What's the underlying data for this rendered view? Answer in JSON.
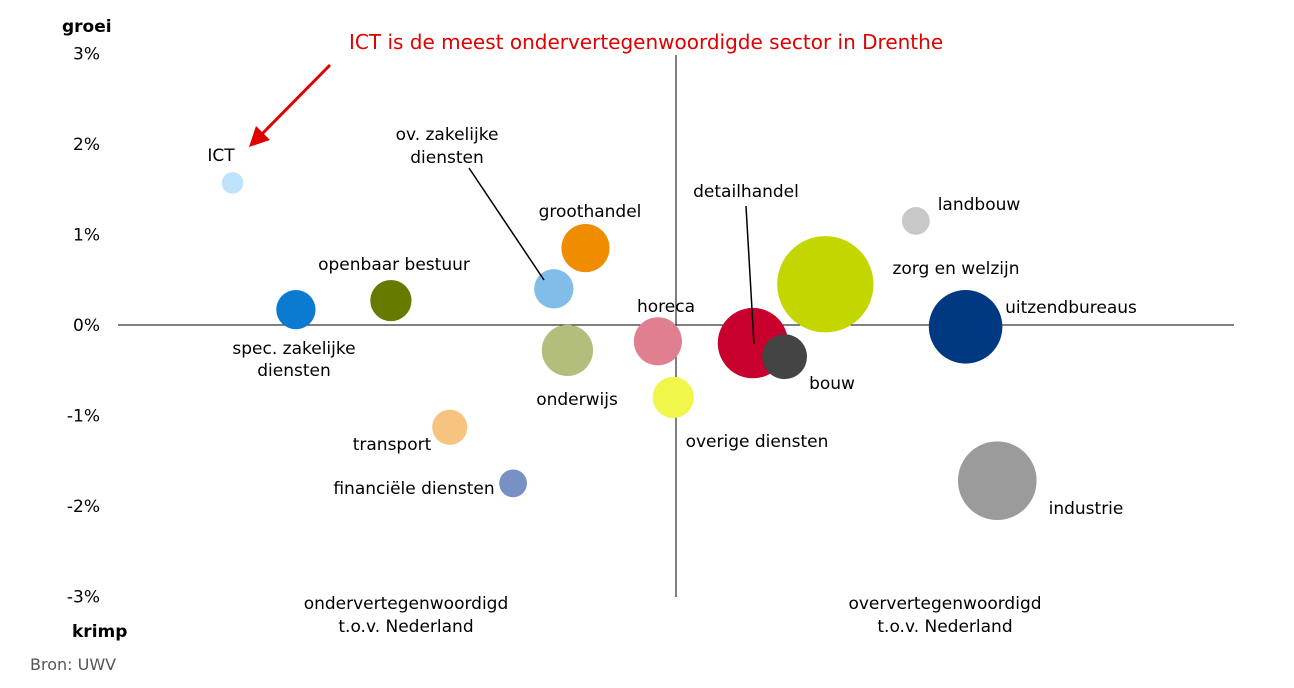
{
  "chart_data": {
    "type": "scatter",
    "subtype": "bubble",
    "title": "",
    "annotation": {
      "text": "ICT is de meest ondervertegenwoordigde sector in Drenthe",
      "color": "#e00000",
      "points_to": "ICT"
    },
    "y_axis": {
      "top_label": "groei",
      "bottom_label": "krimp",
      "ticks": [
        "3%",
        "2%",
        "1%",
        "0%",
        "-1%",
        "-2%",
        "-3%"
      ],
      "ylim": [
        -3,
        3
      ]
    },
    "x_axis": {
      "left_label": [
        "ondervertegenwoordigd",
        "t.o.v. Nederland"
      ],
      "right_label": [
        "oververtegenwoordigd",
        "t.o.v. Nederland"
      ]
    },
    "grid": false,
    "points": [
      {
        "label": "ICT",
        "x": -4.9,
        "y": 1.57,
        "size": 0.15,
        "color": "#bfe3fb"
      },
      {
        "label": "spec. zakelijke diensten",
        "label_lines": [
          "spec. zakelijke",
          "diensten"
        ],
        "x": -4.2,
        "y": 0.17,
        "size": 0.5,
        "color": "#0a7bd0"
      },
      {
        "label": "openbaar bestuur",
        "x": -3.15,
        "y": 0.27,
        "size": 0.55,
        "color": "#667a00"
      },
      {
        "label": "ov. zakelijke diensten",
        "label_lines": [
          "ov. zakelijke",
          "diensten"
        ],
        "x": -1.35,
        "y": 0.4,
        "size": 0.5,
        "color": "#82bce8"
      },
      {
        "label": "groothandel",
        "x": -1.0,
        "y": 0.85,
        "size": 0.75,
        "color": "#f08c00"
      },
      {
        "label": "onderwijs",
        "x": -1.2,
        "y": -0.28,
        "size": 0.85,
        "color": "#b3bd7c"
      },
      {
        "label": "transport",
        "x": -2.5,
        "y": -1.13,
        "size": 0.4,
        "color": "#f7c480"
      },
      {
        "label": "financiële diensten",
        "x": -1.8,
        "y": -1.75,
        "size": 0.25,
        "color": "#7891c4"
      },
      {
        "label": "horeca",
        "x": -0.2,
        "y": -0.18,
        "size": 0.75,
        "color": "#df7f8f"
      },
      {
        "label": "overige diensten",
        "x": -0.03,
        "y": -0.8,
        "size": 0.55,
        "color": "#f1f64b"
      },
      {
        "label": "detailhandel",
        "x": 0.85,
        "y": -0.2,
        "size": 1.6,
        "color": "#c8002e"
      },
      {
        "label": "bouw",
        "x": 1.2,
        "y": -0.35,
        "size": 0.65,
        "color": "#444444"
      },
      {
        "label": "zorg en welzijn",
        "x": 1.65,
        "y": 0.45,
        "size": 3.0,
        "color": "#c4d600"
      },
      {
        "label": "landbouw",
        "x": 2.65,
        "y": 1.15,
        "size": 0.25,
        "color": "#c8c8c8"
      },
      {
        "label": "uitzendbureaus",
        "x": 3.2,
        "y": -0.02,
        "size": 1.75,
        "color": "#003882"
      },
      {
        "label": "industrie",
        "x": 3.55,
        "y": -1.72,
        "size": 2.0,
        "color": "#9b9b9b"
      }
    ],
    "source": "Bron: UWV"
  }
}
